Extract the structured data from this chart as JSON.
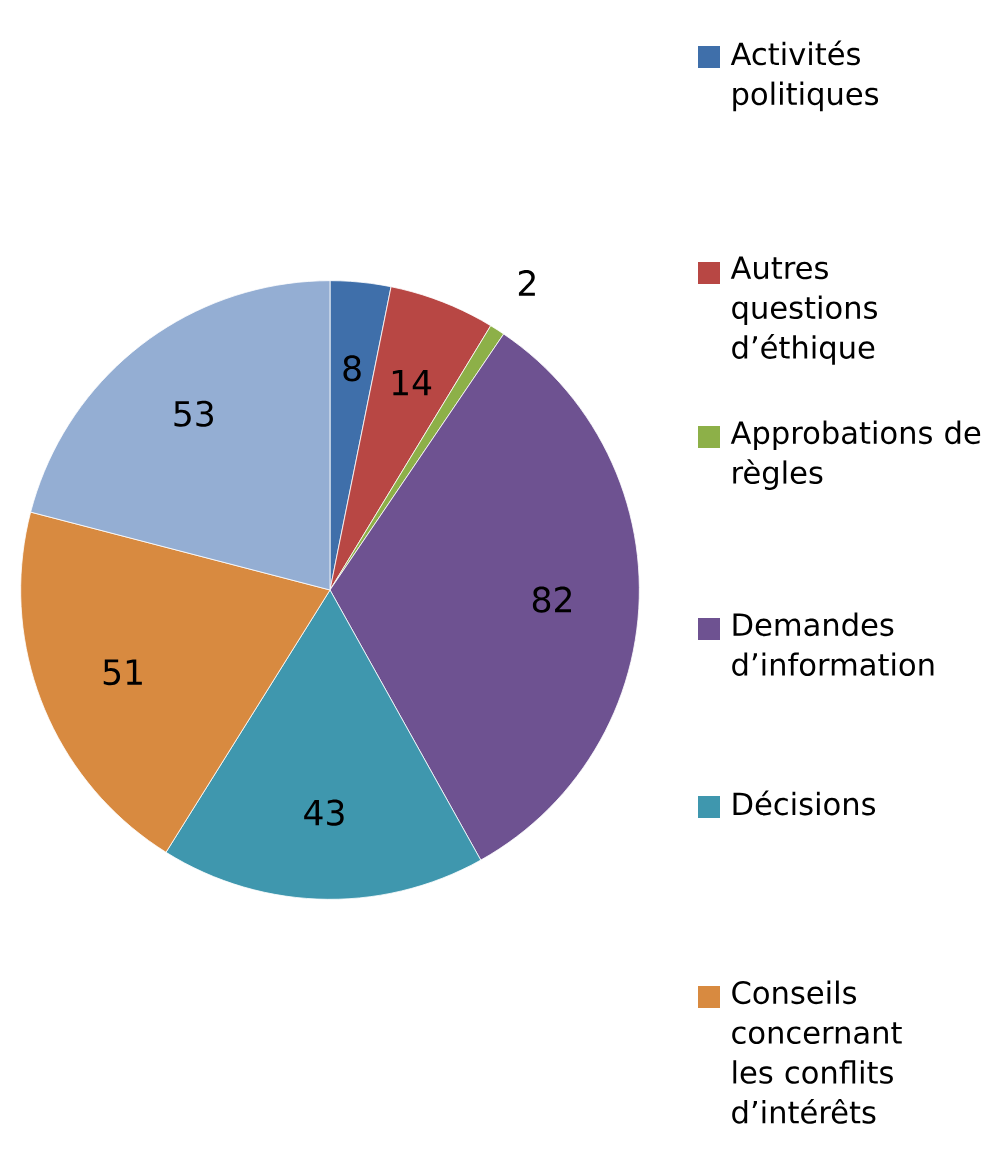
{
  "chart_data": {
    "type": "pie",
    "categories": [
      "Activités politiques",
      "Autres questions d’éthique",
      "Approbations de règles",
      "Demandes d’information",
      "Décisions",
      "Conseils concernant les conflits d’intérêts",
      null
    ],
    "values": [
      8,
      14,
      2,
      82,
      43,
      51,
      53
    ],
    "colors": [
      "#3f6faa",
      "#b84744",
      "#8db048",
      "#6e5291",
      "#3f97ae",
      "#d88a40",
      "#94aed3"
    ],
    "data_labels": true,
    "legend": "right"
  }
}
